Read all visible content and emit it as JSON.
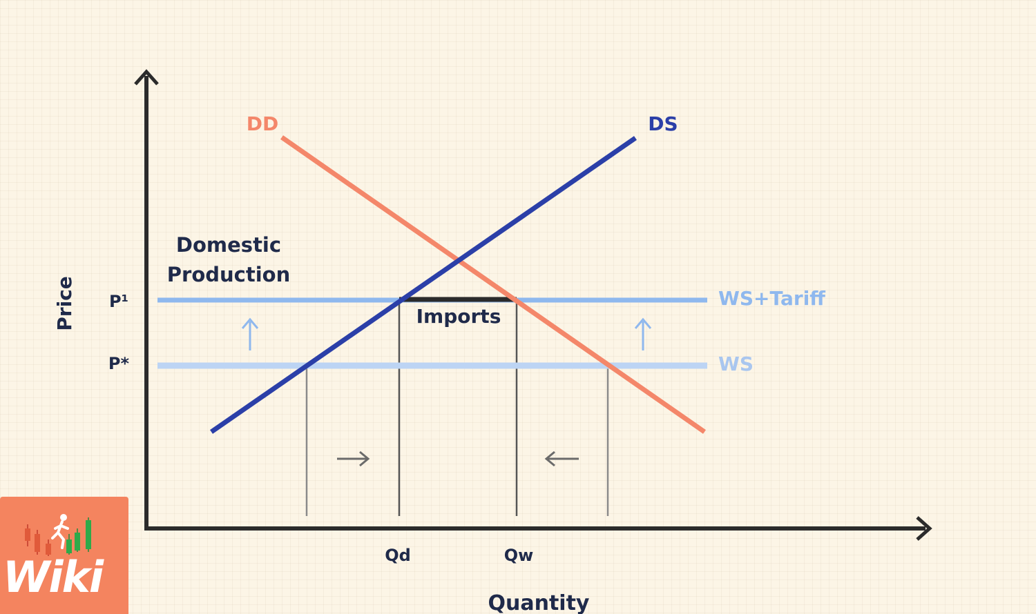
{
  "diagram": {
    "x_axis_label": "Quantity",
    "y_axis_label": "Price",
    "price_levels": {
      "p1": "P¹",
      "pstar": "P*"
    },
    "quantity_ticks": {
      "qd": "Qd",
      "qw": "Qw"
    },
    "curves": {
      "domestic_demand": "DD",
      "domestic_supply": "DS",
      "world_supply_tariff": "WS+Tariff",
      "world_supply": "WS"
    },
    "annotations": {
      "domestic_production_line1": "Domestic",
      "domestic_production_line2": "Production",
      "imports": "Imports"
    },
    "colors": {
      "demand": "#f4876a",
      "supply": "#2b3fa8",
      "world_supply": "#8fb8ee",
      "axis": "#2b2b2b",
      "text": "#1f2a4a"
    }
  },
  "logo": {
    "text": "Wiki"
  }
}
